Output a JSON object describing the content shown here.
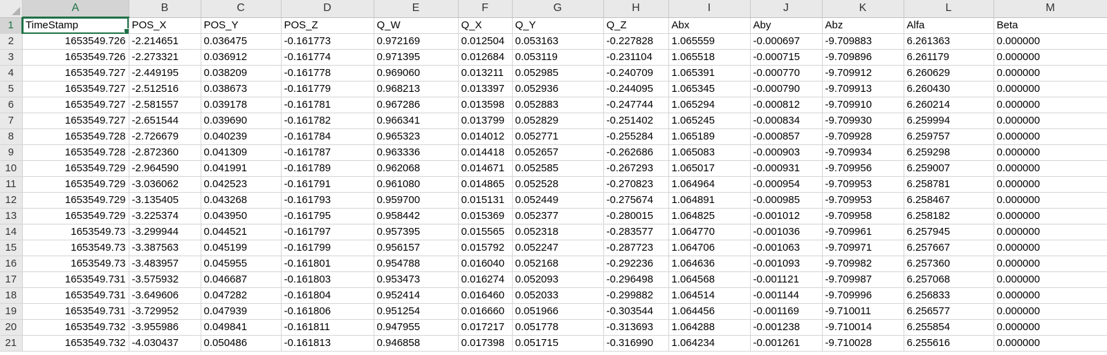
{
  "columns": [
    "A",
    "B",
    "C",
    "D",
    "E",
    "F",
    "G",
    "H",
    "I",
    "J",
    "K",
    "L",
    "M"
  ],
  "selected_column": "A",
  "selected_row": "1",
  "headers": [
    "TimeStamp",
    "POS_X",
    "POS_Y",
    "POS_Z",
    "Q_W",
    "Q_X",
    "Q_Y",
    "Q_Z",
    "Abx",
    "Aby",
    "Abz",
    "Alfa",
    "Beta"
  ],
  "rows": [
    [
      "1653549.726",
      "-2.214651",
      "0.036475",
      "-0.161773",
      "0.972169",
      "0.012504",
      "0.053163",
      "-0.227828",
      "1.065559",
      "-0.000697",
      "-9.709883",
      "6.261363",
      "0.000000"
    ],
    [
      "1653549.726",
      "-2.273321",
      "0.036912",
      "-0.161774",
      "0.971395",
      "0.012684",
      "0.053119",
      "-0.231104",
      "1.065518",
      "-0.000715",
      "-9.709896",
      "6.261179",
      "0.000000"
    ],
    [
      "1653549.727",
      "-2.449195",
      "0.038209",
      "-0.161778",
      "0.969060",
      "0.013211",
      "0.052985",
      "-0.240709",
      "1.065391",
      "-0.000770",
      "-9.709912",
      "6.260629",
      "0.000000"
    ],
    [
      "1653549.727",
      "-2.512516",
      "0.038673",
      "-0.161779",
      "0.968213",
      "0.013397",
      "0.052936",
      "-0.244095",
      "1.065345",
      "-0.000790",
      "-9.709913",
      "6.260430",
      "0.000000"
    ],
    [
      "1653549.727",
      "-2.581557",
      "0.039178",
      "-0.161781",
      "0.967286",
      "0.013598",
      "0.052883",
      "-0.247744",
      "1.065294",
      "-0.000812",
      "-9.709910",
      "6.260214",
      "0.000000"
    ],
    [
      "1653549.727",
      "-2.651544",
      "0.039690",
      "-0.161782",
      "0.966341",
      "0.013799",
      "0.052829",
      "-0.251402",
      "1.065245",
      "-0.000834",
      "-9.709930",
      "6.259994",
      "0.000000"
    ],
    [
      "1653549.728",
      "-2.726679",
      "0.040239",
      "-0.161784",
      "0.965323",
      "0.014012",
      "0.052771",
      "-0.255284",
      "1.065189",
      "-0.000857",
      "-9.709928",
      "6.259757",
      "0.000000"
    ],
    [
      "1653549.728",
      "-2.872360",
      "0.041309",
      "-0.161787",
      "0.963336",
      "0.014418",
      "0.052657",
      "-0.262686",
      "1.065083",
      "-0.000903",
      "-9.709934",
      "6.259298",
      "0.000000"
    ],
    [
      "1653549.729",
      "-2.964590",
      "0.041991",
      "-0.161789",
      "0.962068",
      "0.014671",
      "0.052585",
      "-0.267293",
      "1.065017",
      "-0.000931",
      "-9.709956",
      "6.259007",
      "0.000000"
    ],
    [
      "1653549.729",
      "-3.036062",
      "0.042523",
      "-0.161791",
      "0.961080",
      "0.014865",
      "0.052528",
      "-0.270823",
      "1.064964",
      "-0.000954",
      "-9.709953",
      "6.258781",
      "0.000000"
    ],
    [
      "1653549.729",
      "-3.135405",
      "0.043268",
      "-0.161793",
      "0.959700",
      "0.015131",
      "0.052449",
      "-0.275674",
      "1.064891",
      "-0.000985",
      "-9.709953",
      "6.258467",
      "0.000000"
    ],
    [
      "1653549.729",
      "-3.225374",
      "0.043950",
      "-0.161795",
      "0.958442",
      "0.015369",
      "0.052377",
      "-0.280015",
      "1.064825",
      "-0.001012",
      "-9.709958",
      "6.258182",
      "0.000000"
    ],
    [
      "1653549.73",
      "-3.299944",
      "0.044521",
      "-0.161797",
      "0.957395",
      "0.015565",
      "0.052318",
      "-0.283577",
      "1.064770",
      "-0.001036",
      "-9.709961",
      "6.257945",
      "0.000000"
    ],
    [
      "1653549.73",
      "-3.387563",
      "0.045199",
      "-0.161799",
      "0.956157",
      "0.015792",
      "0.052247",
      "-0.287723",
      "1.064706",
      "-0.001063",
      "-9.709971",
      "6.257667",
      "0.000000"
    ],
    [
      "1653549.73",
      "-3.483957",
      "0.045955",
      "-0.161801",
      "0.954788",
      "0.016040",
      "0.052168",
      "-0.292236",
      "1.064636",
      "-0.001093",
      "-9.709982",
      "6.257360",
      "0.000000"
    ],
    [
      "1653549.731",
      "-3.575932",
      "0.046687",
      "-0.161803",
      "0.953473",
      "0.016274",
      "0.052093",
      "-0.296498",
      "1.064568",
      "-0.001121",
      "-9.709987",
      "6.257068",
      "0.000000"
    ],
    [
      "1653549.731",
      "-3.649606",
      "0.047282",
      "-0.161804",
      "0.952414",
      "0.016460",
      "0.052033",
      "-0.299882",
      "1.064514",
      "-0.001144",
      "-9.709996",
      "6.256833",
      "0.000000"
    ],
    [
      "1653549.731",
      "-3.729952",
      "0.047939",
      "-0.161806",
      "0.951254",
      "0.016660",
      "0.051966",
      "-0.303544",
      "1.064456",
      "-0.001169",
      "-9.710011",
      "6.256577",
      "0.000000"
    ],
    [
      "1653549.732",
      "-3.955986",
      "0.049841",
      "-0.161811",
      "0.947955",
      "0.017217",
      "0.051778",
      "-0.313693",
      "1.064288",
      "-0.001238",
      "-9.710014",
      "6.255854",
      "0.000000"
    ],
    [
      "1653549.732",
      "-4.030437",
      "0.050486",
      "-0.161813",
      "0.946858",
      "0.017398",
      "0.051715",
      "-0.316990",
      "1.064234",
      "-0.001261",
      "-9.710028",
      "6.255616",
      "0.000000"
    ]
  ],
  "colors": {
    "selection": "#1e7145",
    "header_bg": "#e9e9e9",
    "gridline": "#d4d4d4"
  }
}
